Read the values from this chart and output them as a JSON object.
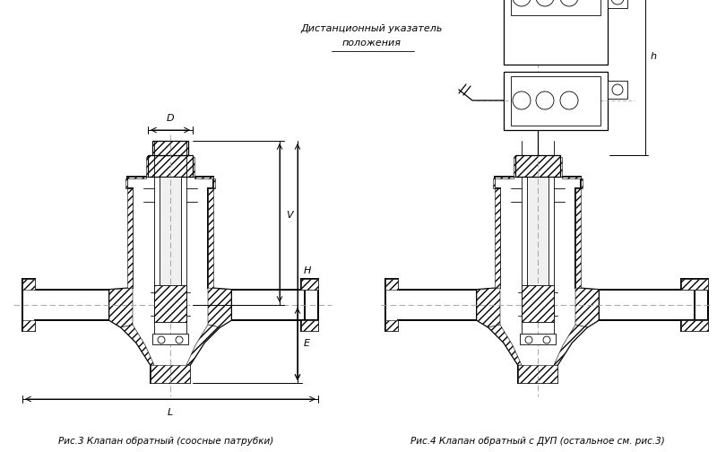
{
  "background_color": "#ffffff",
  "line_color": "#000000",
  "fig3_caption": "Рис.3 Клапан обратный (соосные патрубки)",
  "fig4_caption": "Рис.4 Клапан обратный с ДУП (остальное см. рис.3)",
  "ann_line1": "Дистанционный указатель",
  "ann_line2": "положения",
  "dim_D": "D",
  "dim_V": "V",
  "dim_H": "H",
  "dim_E": "E",
  "dim_L": "L",
  "dim_h": "h",
  "fig_width": 8.0,
  "fig_height": 5.04,
  "dpi": 100
}
